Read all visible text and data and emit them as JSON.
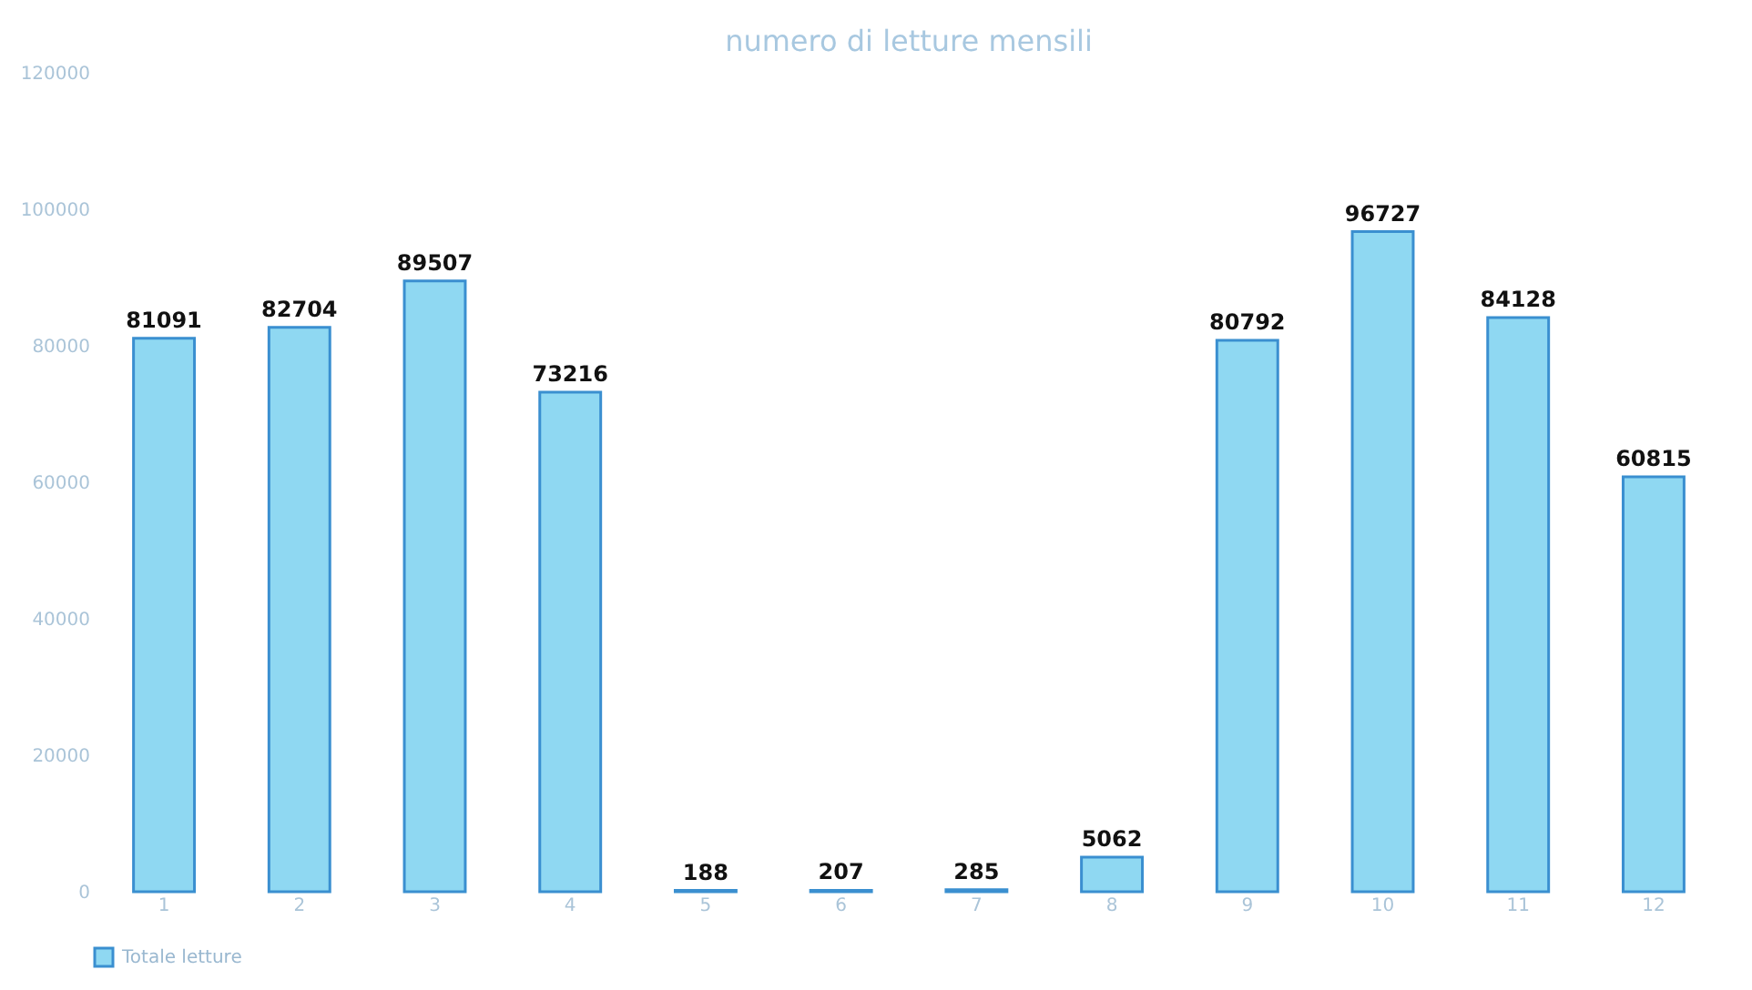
{
  "chart_data": {
    "type": "bar",
    "title": "numero di letture mensili",
    "categories": [
      "1",
      "2",
      "3",
      "4",
      "5",
      "6",
      "7",
      "8",
      "9",
      "10",
      "11",
      "12"
    ],
    "series": [
      {
        "name": "Totale letture",
        "color": "#8fd8f2",
        "values": [
          81091,
          82704,
          89507,
          73216,
          188,
          207,
          285,
          5062,
          80792,
          96727,
          84128,
          60815
        ]
      }
    ],
    "ylim": [
      0,
      120000
    ],
    "yticks": [
      0,
      20000,
      40000,
      60000,
      80000,
      100000,
      120000
    ],
    "data_labels": true,
    "grid": false,
    "legend": "bottom"
  }
}
